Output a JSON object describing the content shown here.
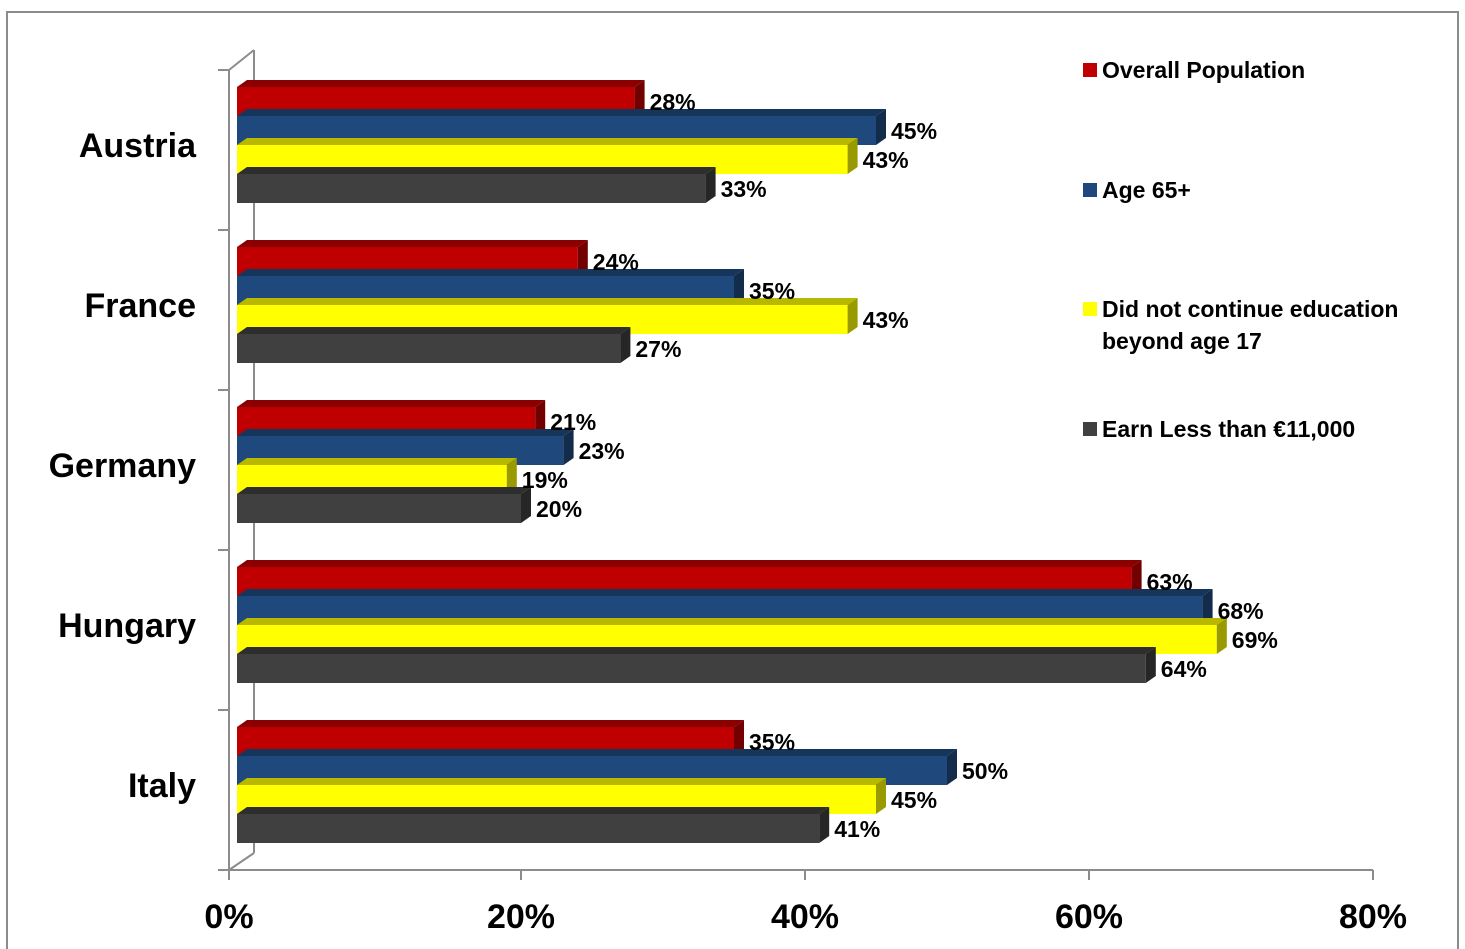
{
  "chart_data": {
    "type": "bar",
    "orientation": "horizontal",
    "categories": [
      "Austria",
      "France",
      "Germany",
      "Hungary",
      "Italy"
    ],
    "series": [
      {
        "name": "Overall Population",
        "color": "#c00000",
        "values": [
          28,
          24,
          21,
          63,
          35
        ],
        "labels": [
          "28%",
          "24%",
          "21%",
          "63%",
          "35%"
        ]
      },
      {
        "name": "Age 65+",
        "color": "#1f497d",
        "values": [
          45,
          35,
          23,
          68,
          50
        ],
        "labels": [
          "45%",
          "35%",
          "23%",
          "68%",
          "50%"
        ]
      },
      {
        "name": "Did not continue education beyond age 17",
        "name_lines": [
          "Did not continue education",
          "beyond age 17"
        ],
        "color": "#ffff00",
        "values": [
          43,
          43,
          19,
          69,
          45
        ],
        "labels": [
          "43%",
          "43%",
          "19%",
          "69%",
          "45%"
        ]
      },
      {
        "name": "Earn Less than €11,000",
        "color": "#404040",
        "values": [
          33,
          27,
          20,
          64,
          41
        ],
        "labels": [
          "33%",
          "27%",
          "20%",
          "64%",
          "41%"
        ]
      }
    ],
    "xlim": [
      0,
      80
    ],
    "xticks": [
      0,
      20,
      40,
      60,
      80
    ],
    "xtick_labels": [
      "0%",
      "20%",
      "40%",
      "60%",
      "80%"
    ],
    "legend_position": "right",
    "grid": false,
    "style": "3d"
  }
}
